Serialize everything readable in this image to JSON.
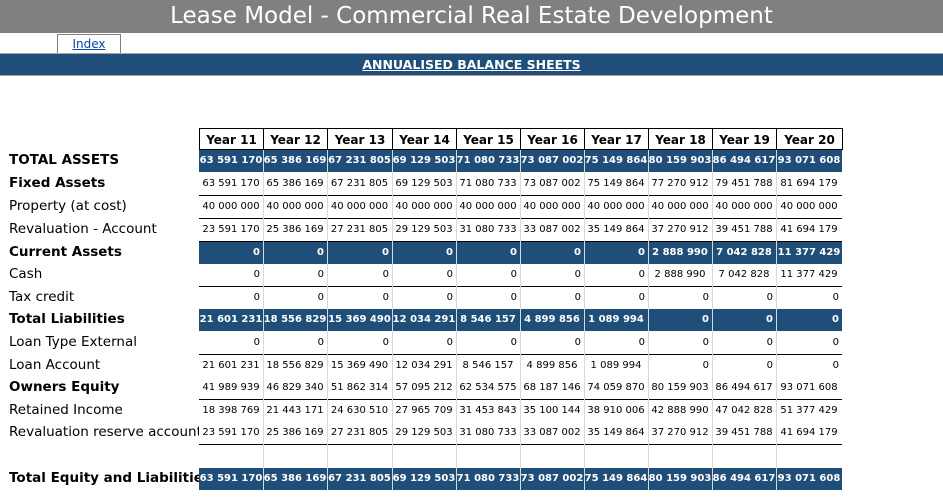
{
  "title": "Lease Model - Commercial Real Estate Development",
  "index_link": "Index",
  "section_title": "ANNUALISED BALANCE SHEETS",
  "colors": {
    "title_bg": "#808080",
    "band_blue": "#1f4e79"
  },
  "years": [
    "Year 11",
    "Year 12",
    "Year 13",
    "Year 14",
    "Year 15",
    "Year 16",
    "Year 17",
    "Year 18",
    "Year 19",
    "Year 20"
  ],
  "rows": [
    {
      "label": "TOTAL ASSETS",
      "bold": true,
      "style": "blue",
      "values": [
        "63 591 170",
        "65 386 169",
        "67 231 805",
        "69 129 503",
        "71 080 733",
        "73 087 002",
        "75 149 864",
        "80 159 903",
        "86 494 617",
        "93 071 608"
      ]
    },
    {
      "label": "Fixed Assets",
      "bold": true,
      "style": "white",
      "values": [
        "63 591 170",
        "65 386 169",
        "67 231 805",
        "69 129 503",
        "71 080 733",
        "73 087 002",
        "75 149 864",
        "77 270 912",
        "79 451 788",
        "81 694 179"
      ]
    },
    {
      "label": "Property (at cost)",
      "bold": false,
      "style": "white",
      "values": [
        "40 000 000",
        "40 000 000",
        "40 000 000",
        "40 000 000",
        "40 000 000",
        "40 000 000",
        "40 000 000",
        "40 000 000",
        "40 000 000",
        "40 000 000"
      ]
    },
    {
      "label": "Revaluation - Account",
      "bold": false,
      "style": "white",
      "values": [
        "23 591 170",
        "25 386 169",
        "27 231 805",
        "29 129 503",
        "31 080 733",
        "33 087 002",
        "35 149 864",
        "37 270 912",
        "39 451 788",
        "41 694 179"
      ]
    },
    {
      "label": "Current Assets",
      "bold": true,
      "style": "blue",
      "values": [
        "0",
        "0",
        "0",
        "0",
        "0",
        "0",
        "0",
        "2 888 990",
        "7 042 828",
        "11 377 429"
      ]
    },
    {
      "label": "Cash",
      "bold": false,
      "style": "white",
      "values": [
        "0",
        "0",
        "0",
        "0",
        "0",
        "0",
        "0",
        "2 888 990",
        "7 042 828",
        "11 377 429"
      ]
    },
    {
      "label": "Tax credit",
      "bold": false,
      "style": "white",
      "values": [
        "0",
        "0",
        "0",
        "0",
        "0",
        "0",
        "0",
        "0",
        "0",
        "0"
      ]
    },
    {
      "label": "Total Liabilities",
      "bold": true,
      "style": "blue",
      "values": [
        "21 601 231",
        "18 556 829",
        "15 369 490",
        "12 034 291",
        "8 546 157",
        "4 899 856",
        "1 089 994",
        "0",
        "0",
        "0"
      ]
    },
    {
      "label": "Loan Type External",
      "bold": false,
      "style": "white",
      "values": [
        "0",
        "0",
        "0",
        "0",
        "0",
        "0",
        "0",
        "0",
        "0",
        "0"
      ]
    },
    {
      "label": "Loan Account",
      "bold": false,
      "style": "white",
      "values": [
        "21 601 231",
        "18 556 829",
        "15 369 490",
        "12 034 291",
        "8 546 157",
        "4 899 856",
        "1 089 994",
        "0",
        "0",
        "0"
      ]
    },
    {
      "label": "Owners Equity",
      "bold": true,
      "style": "white",
      "values": [
        "41 989 939",
        "46 829 340",
        "51 862 314",
        "57 095 212",
        "62 534 575",
        "68 187 146",
        "74 059 870",
        "80 159 903",
        "86 494 617",
        "93 071 608"
      ]
    },
    {
      "label": "Retained Income",
      "bold": false,
      "style": "white",
      "values": [
        "18 398 769",
        "21 443 171",
        "24 630 510",
        "27 965 709",
        "31 453 843",
        "35 100 144",
        "38 910 006",
        "42 888 990",
        "47 042 828",
        "51 377 429"
      ]
    },
    {
      "label": "Revaluation reserve account",
      "bold": false,
      "style": "white",
      "values": [
        "23 591 170",
        "25 386 169",
        "27 231 805",
        "29 129 503",
        "31 080 733",
        "33 087 002",
        "35 149 864",
        "37 270 912",
        "39 451 788",
        "41 694 179"
      ]
    },
    {
      "label": "",
      "bold": false,
      "style": "spacer",
      "values": [
        "",
        "",
        "",
        "",
        "",
        "",
        "",
        "",
        "",
        ""
      ]
    },
    {
      "label": "Total Equity and Liabilities",
      "bold": true,
      "style": "blue",
      "values": [
        "63 591 170",
        "65 386 169",
        "67 231 805",
        "69 129 503",
        "71 080 733",
        "73 087 002",
        "75 149 864",
        "80 159 903",
        "86 494 617",
        "93 071 608"
      ]
    }
  ]
}
